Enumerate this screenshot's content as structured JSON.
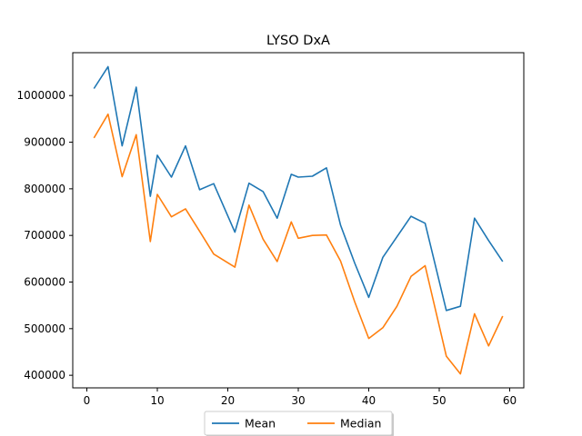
{
  "chart_data": {
    "type": "line",
    "title": "LYSO DxA",
    "xlabel": "",
    "ylabel": "",
    "xlim": [
      -2,
      62
    ],
    "ylim": [
      373000,
      1092000
    ],
    "xticks": [
      0,
      10,
      20,
      30,
      40,
      50,
      60
    ],
    "yticks": [
      400000,
      500000,
      600000,
      700000,
      800000,
      900000,
      1000000
    ],
    "xtick_labels": [
      "0",
      "10",
      "20",
      "30",
      "40",
      "50",
      "60"
    ],
    "ytick_labels": [
      "400000",
      "500000",
      "600000",
      "700000",
      "800000",
      "900000",
      "1000000"
    ],
    "grid": false,
    "legend_position": "bottom-center",
    "x": [
      1,
      3,
      5,
      7,
      9,
      10,
      12,
      14,
      16,
      18,
      21,
      23,
      25,
      27,
      29,
      30,
      32,
      34,
      36,
      38,
      40,
      42,
      44,
      46,
      48,
      51,
      53,
      55,
      57,
      59
    ],
    "series": [
      {
        "name": "Mean",
        "color": "#1f77b4",
        "values": [
          1015000,
          1062000,
          892000,
          1018000,
          784000,
          872000,
          825000,
          892000,
          798000,
          811000,
          707000,
          812000,
          794000,
          737000,
          831000,
          825000,
          827000,
          845000,
          722000,
          641000,
          567000,
          653000,
          697000,
          741000,
          726000,
          539000,
          548000,
          737000,
          689000,
          644000
        ]
      },
      {
        "name": "Median",
        "color": "#ff7f0e",
        "values": [
          909000,
          960000,
          826000,
          916000,
          687000,
          788000,
          740000,
          757000,
          709000,
          660000,
          632000,
          765000,
          692000,
          644000,
          729000,
          694000,
          700000,
          701000,
          645000,
          558000,
          479000,
          502000,
          548000,
          612000,
          635000,
          441000,
          403000,
          532000,
          463000,
          527000
        ]
      }
    ]
  }
}
